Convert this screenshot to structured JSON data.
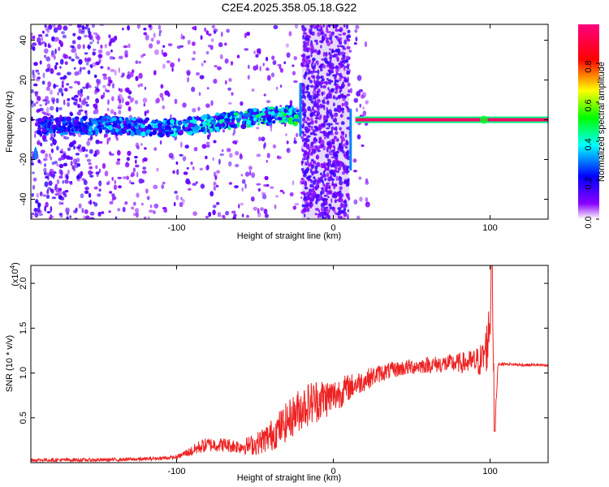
{
  "chart_data": [
    {
      "type": "heatmap",
      "title": "C2E4.2025.358.05.18.G22",
      "xlabel": "Height of straight line (km)",
      "ylabel": "Frequency (Hz)",
      "xlim": [
        -193,
        137
      ],
      "ylim": [
        -50,
        48
      ],
      "xticks": [
        -100,
        0,
        100
      ],
      "yticks": [
        -40,
        -20,
        0,
        20,
        40
      ],
      "colorbar": {
        "label": "Normalized spectral amplitude",
        "range": [
          0,
          1
        ],
        "ticks": [
          "0.0",
          "0.2",
          "0.4",
          "0.6",
          "0.8"
        ],
        "colors": [
          "#ffffff",
          "#7a00ff",
          "#0000ff",
          "#00ffff",
          "#00ff00",
          "#ffff00",
          "#ff0000",
          "#ff0090"
        ]
      },
      "ridge": {
        "description_x": [
          -190,
          -170,
          -150,
          -130,
          -110,
          -90,
          -70,
          -50,
          -40,
          -30,
          -25,
          -22
        ],
        "frequency": [
          -3,
          -3,
          -3,
          -3,
          -4,
          -3,
          -1,
          1,
          2,
          3,
          2,
          1
        ],
        "peak_amplitude": 0.4
      },
      "carrier": {
        "x_range": [
          14,
          137
        ],
        "frequency": 0,
        "amplitude": 0.97
      },
      "dense_noise_band": [
        -20,
        10
      ]
    },
    {
      "type": "line",
      "xlabel": "Height of straight line (km)",
      "ylabel": "SNR (10 * v/v)",
      "scale_label": "(x10",
      "scale_exponent": "4",
      "xlim": [
        -193,
        137
      ],
      "ylim": [
        0,
        2.2
      ],
      "xticks": [
        -100,
        0,
        100
      ],
      "yticks": [
        "0.5",
        "1.0",
        "1.5",
        "2.0"
      ],
      "series": [
        {
          "color": "#ee2222",
          "x": [
            -193,
            -150,
            -120,
            -100,
            -95,
            -90,
            -85,
            -80,
            -70,
            -60,
            -50,
            -40,
            -30,
            -20,
            -10,
            0,
            10,
            20,
            30,
            40,
            50,
            60,
            70,
            80,
            90,
            95,
            98,
            100,
            101,
            103,
            105,
            110,
            120,
            130,
            137
          ],
          "y": [
            0.03,
            0.03,
            0.04,
            0.06,
            0.1,
            0.13,
            0.18,
            0.2,
            0.2,
            0.18,
            0.2,
            0.3,
            0.45,
            0.62,
            0.7,
            0.74,
            0.84,
            0.92,
            1.0,
            1.04,
            1.07,
            1.09,
            1.1,
            1.11,
            1.12,
            1.15,
            1.3,
            1.6,
            2.2,
            0.35,
            1.1,
            1.1,
            1.09,
            1.09,
            1.08
          ],
          "noise": [
            0.02,
            0.02,
            0.02,
            0.02,
            0.04,
            0.06,
            0.08,
            0.08,
            0.08,
            0.08,
            0.12,
            0.18,
            0.22,
            0.25,
            0.25,
            0.2,
            0.15,
            0.12,
            0.1,
            0.09,
            0.09,
            0.09,
            0.1,
            0.11,
            0.15,
            0.2,
            0.3,
            0.3,
            0.3,
            0.1,
            0.02,
            0.015,
            0.015,
            0.015,
            0.015
          ]
        }
      ]
    }
  ]
}
